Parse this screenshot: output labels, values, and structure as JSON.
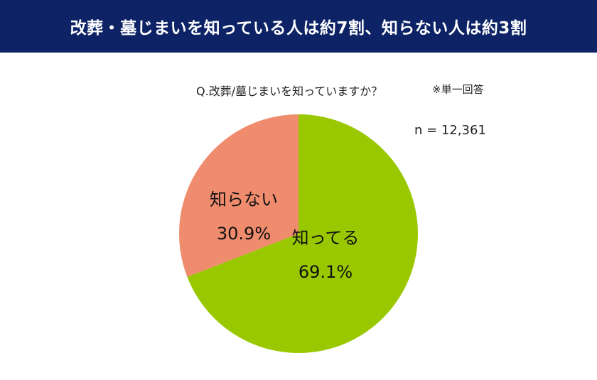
{
  "header": {
    "title": "改葬・墓じまいを知っている人は約7割、知らない人は約3割"
  },
  "question": "Q.改葬/墓じまいを知っていますか？",
  "answer_type": "※単一回答",
  "sample_size": "n = 12,361",
  "colors": {
    "header_bg": "#0d2366",
    "know": "#99c800",
    "dont_know": "#f08c6e"
  },
  "chart_data": {
    "type": "pie",
    "slices": [
      {
        "label": "知ってる",
        "value": 69.1,
        "value_label": "69.1%",
        "color": "#99c800"
      },
      {
        "label": "知らない",
        "value": 30.9,
        "value_label": "30.9%",
        "color": "#f08c6e"
      }
    ],
    "start": "12 o'clock",
    "direction": "clockwise"
  }
}
